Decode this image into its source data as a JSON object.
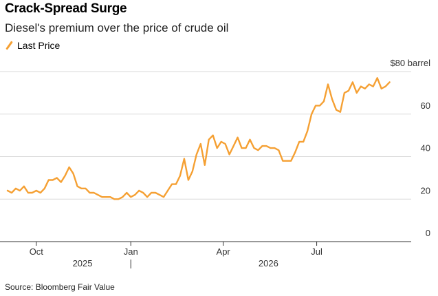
{
  "header": {
    "title": "Crack-Spread Surge",
    "subtitle": "Diesel's premium over the price of crude oil"
  },
  "legend": {
    "label": "Last Price"
  },
  "footer": {
    "source": "Source: Bloomberg Fair Value"
  },
  "colors": {
    "line": "#f5a033",
    "grid": "#d9d9d9",
    "axis": "#333333"
  },
  "chart_data": {
    "type": "line",
    "title": "Crack-Spread Surge",
    "subtitle": "Diesel's premium over the price of crude oil",
    "ylabel": "",
    "y_unit_label": "$80 barrel",
    "ylim": [
      0,
      80
    ],
    "yticks": [
      0,
      20,
      40,
      60,
      80
    ],
    "ytick_labels": [
      "0",
      "20",
      "40",
      "60",
      "$80 barrel"
    ],
    "xlim": [
      "2025-09-01",
      "2026-10-01"
    ],
    "xticks": [
      {
        "date": "2025-10-01",
        "label": "Oct"
      },
      {
        "date": "2026-01-01",
        "label": "Jan"
      },
      {
        "date": "2026-04-01",
        "label": "Apr"
      },
      {
        "date": "2026-07-01",
        "label": "Jul"
      }
    ],
    "year_labels": [
      {
        "date": "2025-11-15",
        "label": "2025"
      },
      {
        "date": "2026-05-15",
        "label": "2026"
      }
    ],
    "year_divider": "2026-01-01",
    "grid": true,
    "legend_position": "top-left",
    "series": [
      {
        "name": "Last Price",
        "x": [
          "2025-09-03",
          "2025-09-07",
          "2025-09-11",
          "2025-09-15",
          "2025-09-19",
          "2025-09-23",
          "2025-09-27",
          "2025-10-01",
          "2025-10-05",
          "2025-10-09",
          "2025-10-13",
          "2025-10-17",
          "2025-10-21",
          "2025-10-25",
          "2025-10-29",
          "2025-11-02",
          "2025-11-06",
          "2025-11-10",
          "2025-11-14",
          "2025-11-18",
          "2025-11-22",
          "2025-11-26",
          "2025-11-30",
          "2025-12-04",
          "2025-12-08",
          "2025-12-12",
          "2025-12-16",
          "2025-12-20",
          "2025-12-24",
          "2025-12-28",
          "2026-01-01",
          "2026-01-05",
          "2026-01-09",
          "2026-01-13",
          "2026-01-17",
          "2026-01-21",
          "2026-01-25",
          "2026-01-29",
          "2026-02-02",
          "2026-02-06",
          "2026-02-10",
          "2026-02-14",
          "2026-02-18",
          "2026-02-22",
          "2026-02-26",
          "2026-03-02",
          "2026-03-06",
          "2026-03-10",
          "2026-03-14",
          "2026-03-18",
          "2026-03-22",
          "2026-03-26",
          "2026-03-30",
          "2026-04-03",
          "2026-04-07",
          "2026-04-11",
          "2026-04-15",
          "2026-04-19",
          "2026-04-23",
          "2026-04-27",
          "2026-05-01",
          "2026-05-05",
          "2026-05-09",
          "2026-05-13",
          "2026-05-17",
          "2026-05-21",
          "2026-05-25",
          "2026-05-29",
          "2026-06-02",
          "2026-06-06",
          "2026-06-10",
          "2026-06-14",
          "2026-06-18",
          "2026-06-22",
          "2026-06-26",
          "2026-06-30",
          "2026-07-04",
          "2026-07-08",
          "2026-07-12",
          "2026-07-16",
          "2026-07-20",
          "2026-07-24",
          "2026-07-28",
          "2026-08-01",
          "2026-08-05",
          "2026-08-09",
          "2026-08-13",
          "2026-08-17",
          "2026-08-21",
          "2026-08-25",
          "2026-08-29",
          "2026-09-02",
          "2026-09-06",
          "2026-09-10"
        ],
        "values": [
          24,
          23,
          25,
          24,
          26,
          23,
          23,
          24,
          23,
          25,
          29,
          29,
          30,
          28,
          31,
          35,
          32,
          26,
          25,
          25,
          23,
          23,
          22,
          21,
          21,
          21,
          20,
          20,
          21,
          23,
          21,
          22,
          24,
          23,
          21,
          23,
          23,
          22,
          21,
          24,
          27,
          27,
          31,
          39,
          29,
          33,
          41,
          46,
          36,
          48,
          50,
          44,
          47,
          46,
          41,
          45,
          49,
          44,
          44,
          48,
          44,
          43,
          45,
          45,
          44,
          44,
          43,
          38,
          38,
          38,
          42,
          47,
          47,
          52,
          60,
          64,
          64,
          66,
          74,
          67,
          62,
          61,
          70,
          71,
          75,
          70,
          73,
          72,
          74,
          73,
          77,
          72,
          73,
          75
        ]
      }
    ]
  }
}
